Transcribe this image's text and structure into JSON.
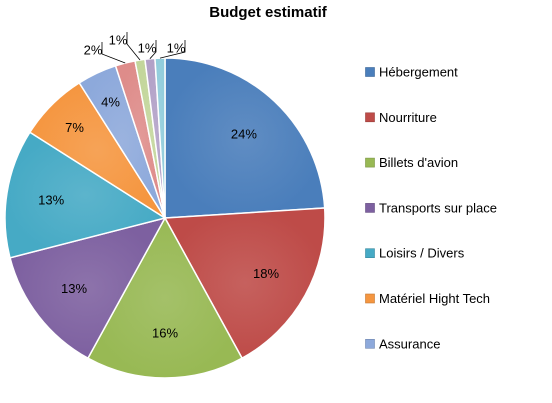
{
  "chart_data": {
    "type": "pie",
    "title": "Budget estimatif",
    "legend_position": "right",
    "slices": [
      {
        "name": "Hébergement",
        "value": 24,
        "label": "24%",
        "color": "#4A7EBB"
      },
      {
        "name": "Nourriture",
        "value": 18,
        "label": "18%",
        "color": "#BE4B48"
      },
      {
        "name": "Billets d'avion",
        "value": 16,
        "label": "16%",
        "color": "#98B954"
      },
      {
        "name": "Transports sur place",
        "value": 13,
        "label": "13%",
        "color": "#7D60A0"
      },
      {
        "name": "Loisirs / Divers",
        "value": 13,
        "label": "13%",
        "color": "#46AAC5"
      },
      {
        "name": "Matériel Hight Tech",
        "value": 7,
        "label": "7%",
        "color": "#F59640"
      },
      {
        "name": "Assurance",
        "value": 4,
        "label": "4%",
        "color": "#8DA9DB"
      },
      {
        "name": "",
        "value": 2,
        "label": "2%",
        "color": "#DE8C8A"
      },
      {
        "name": "",
        "value": 1,
        "label": "1%",
        "color": "#C3D69B"
      },
      {
        "name": "",
        "value": 1,
        "label": "1%",
        "color": "#B2A1C7"
      },
      {
        "name": "",
        "value": 1,
        "label": "1%",
        "color": "#92CDDC"
      }
    ]
  }
}
